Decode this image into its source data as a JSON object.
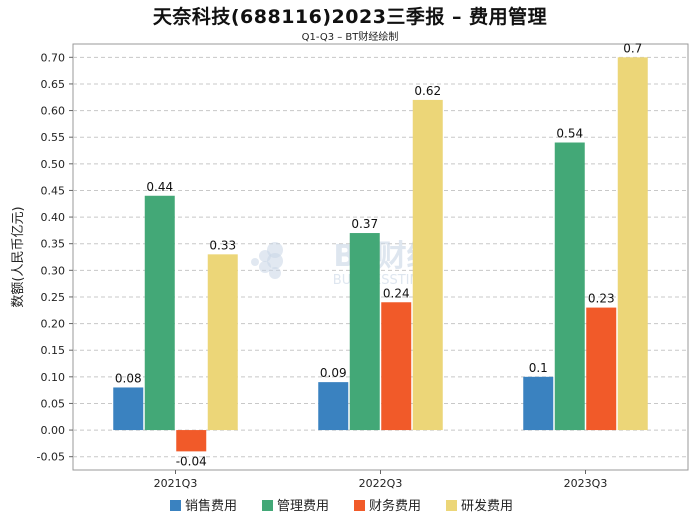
{
  "chart_data": {
    "type": "bar",
    "title": "天奈科技(688116)2023三季报 – 费用管理",
    "subtitle": "Q1-Q3 – BT财经绘制",
    "xlabel": "",
    "ylabel": "数额(人民币亿元)",
    "ylim": [
      -0.075,
      0.725
    ],
    "yticks": [
      "0.70",
      "0.65",
      "0.60",
      "0.55",
      "0.50",
      "0.45",
      "0.40",
      "0.35",
      "0.30",
      "0.25",
      "0.20",
      "0.15",
      "0.10",
      "0.05",
      "0.00",
      "-0.05"
    ],
    "categories": [
      "2021Q3",
      "2022Q3",
      "2023Q3"
    ],
    "series": [
      {
        "name": "销售费用",
        "color": "#3a82c0",
        "values": [
          0.08,
          0.09,
          0.1
        ],
        "labels": [
          "0.08",
          "0.09",
          "0.1"
        ]
      },
      {
        "name": "管理费用",
        "color": "#43a877",
        "values": [
          0.44,
          0.37,
          0.54
        ],
        "labels": [
          "0.44",
          "0.37",
          "0.54"
        ]
      },
      {
        "name": "财务费用",
        "color": "#f15a29",
        "values": [
          -0.04,
          0.24,
          0.23
        ],
        "labels": [
          "-0.04",
          "0.24",
          "0.23"
        ]
      },
      {
        "name": "研发费用",
        "color": "#ecd678",
        "values": [
          0.33,
          0.62,
          0.7
        ],
        "labels": [
          "0.33",
          "0.62",
          "0.7"
        ]
      }
    ],
    "grid": true,
    "legend": "bottom",
    "watermark": {
      "main": "BT财经",
      "sub": "BUSINESSTIMES"
    }
  }
}
